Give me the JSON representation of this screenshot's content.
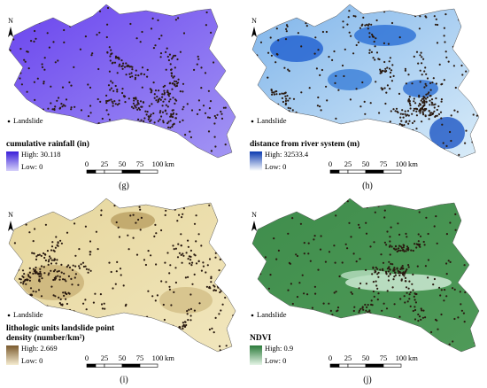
{
  "panels": [
    {
      "label": "(g)",
      "north": "N",
      "point_legend": "Landslide",
      "legend_title_lines": [
        "cumulative rainfall (in)"
      ],
      "high": "High: 30.118",
      "low": "Low: 0"
    },
    {
      "label": "(h)",
      "north": "N",
      "point_legend": "Landslide",
      "legend_title_lines": [
        "distance from river system (m)"
      ],
      "high": "High: 32533.4",
      "low": "Low: 0"
    },
    {
      "label": "(i)",
      "north": "N",
      "point_legend": "Landslide",
      "legend_title_lines": [
        "lithologic units landslide point",
        "density (number/km²)"
      ],
      "high": "High: 2.669",
      "low": "Low: 0"
    },
    {
      "label": "(j)",
      "north": "N",
      "point_legend": "Landslide",
      "legend_title_lines": [
        "NDVI"
      ],
      "high": "High: 0.9",
      "low": "Low: 0"
    }
  ],
  "scale_bar": {
    "ticks": [
      0,
      25,
      50,
      75,
      100
    ],
    "unit": "km"
  }
}
